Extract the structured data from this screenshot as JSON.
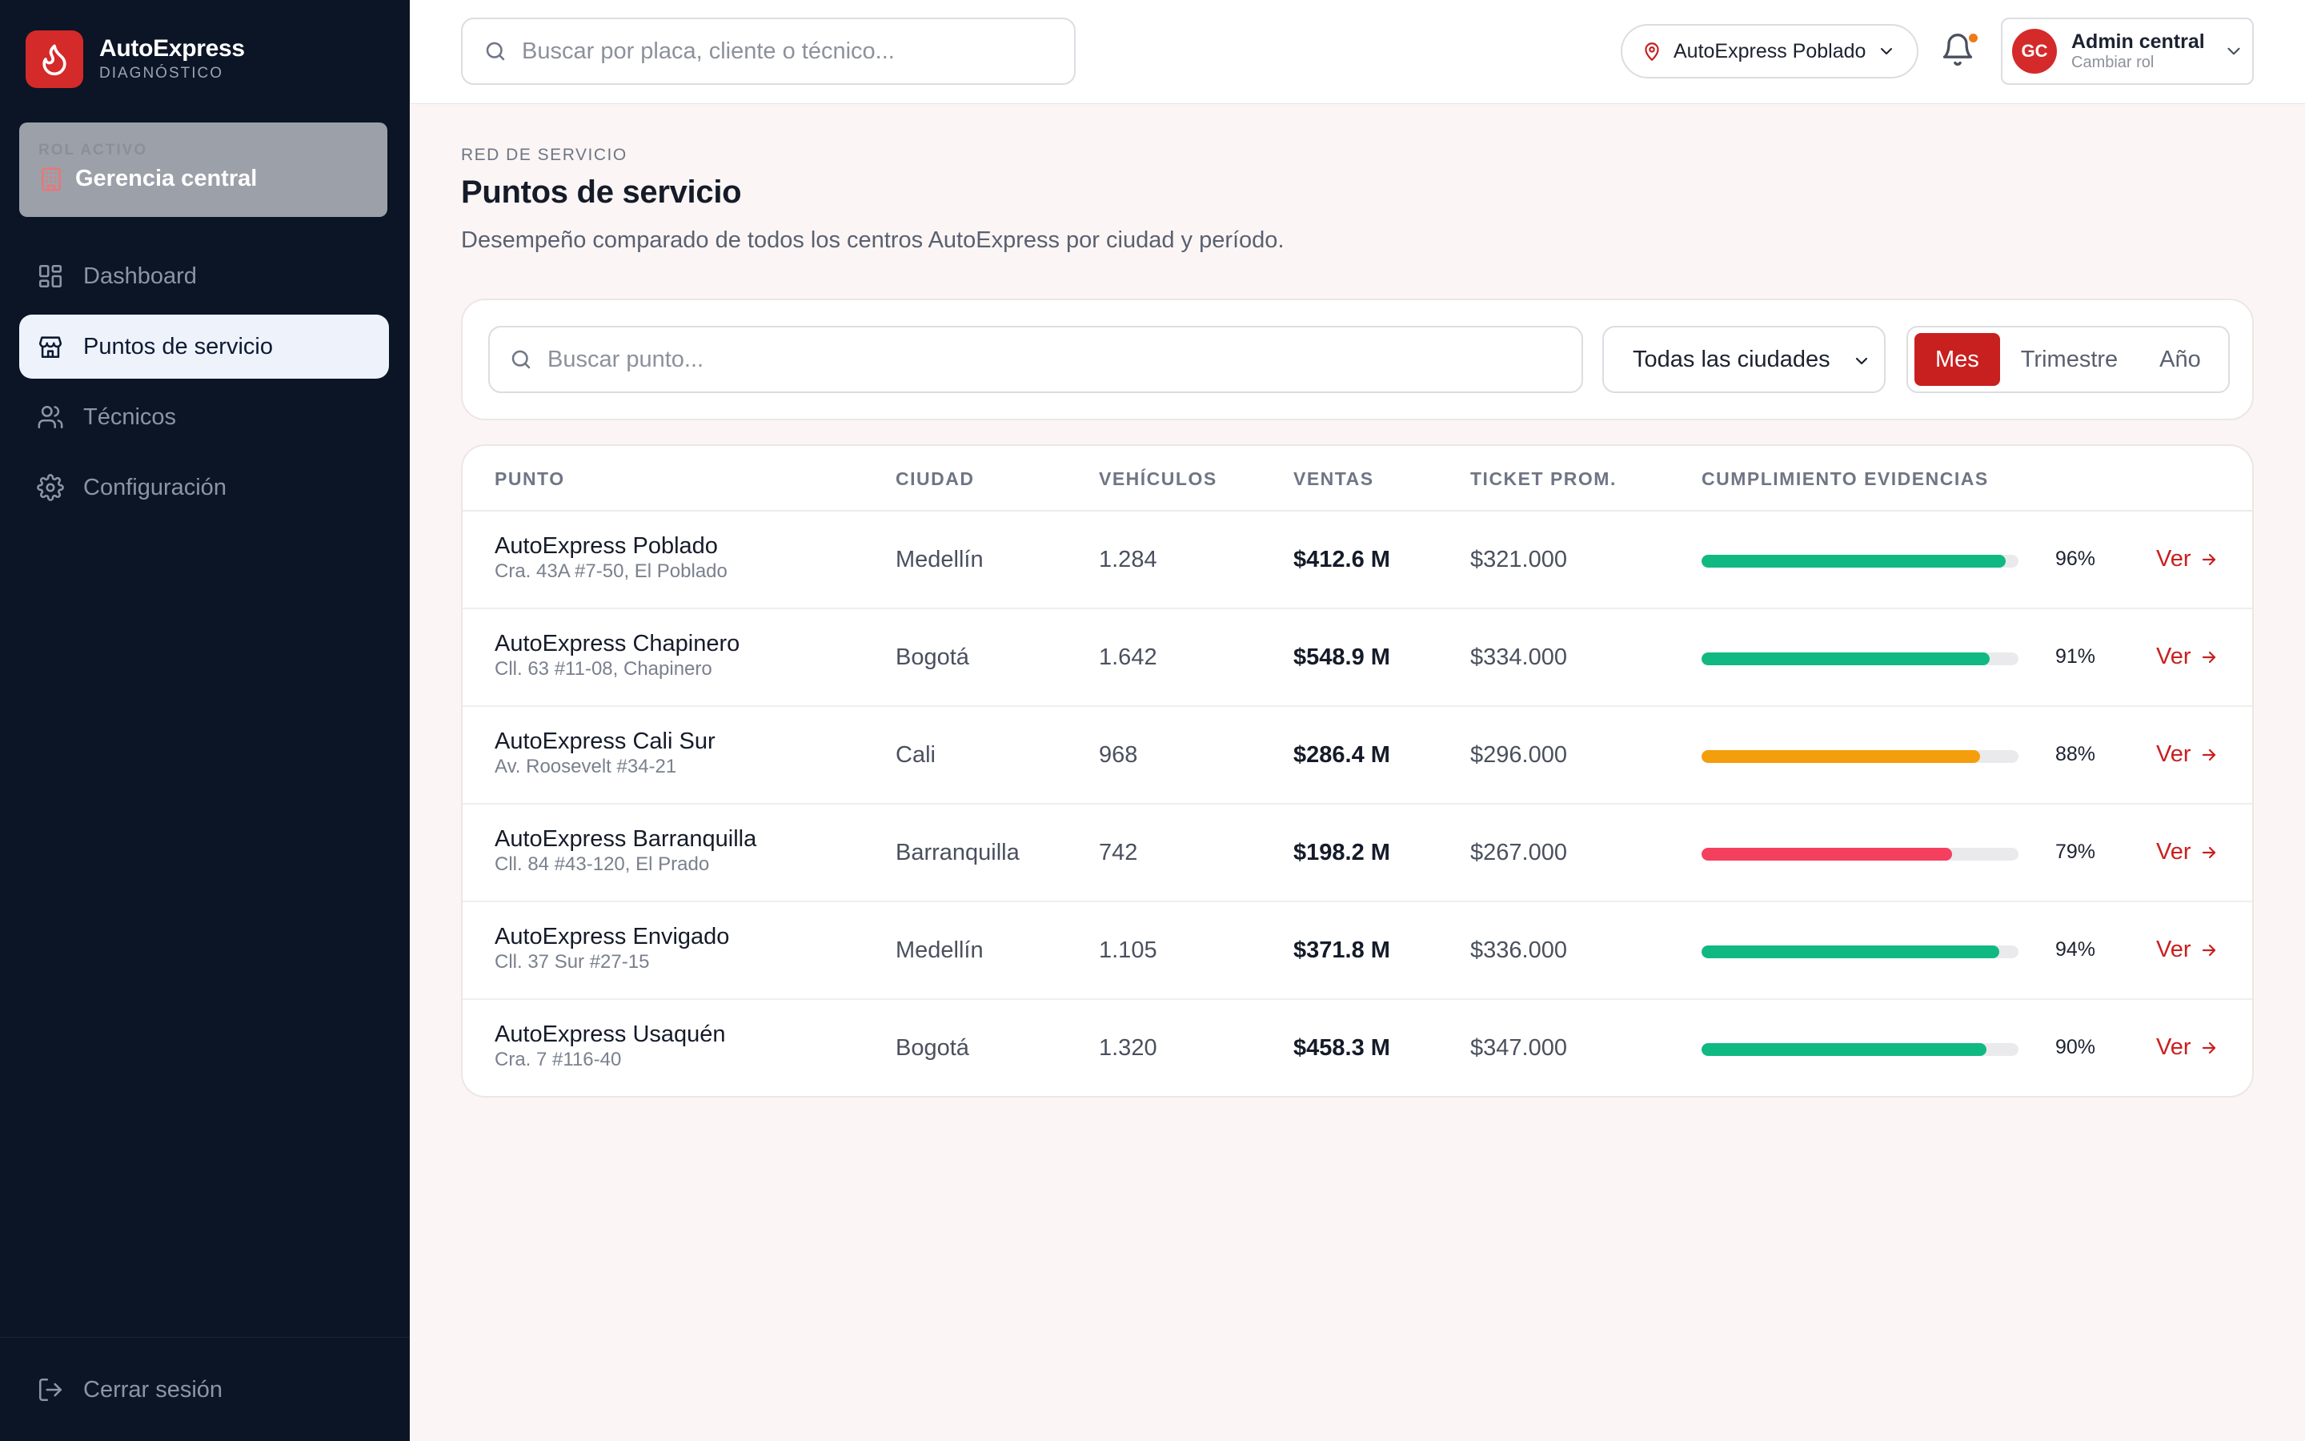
{
  "brand": {
    "name": "AutoExpress",
    "subtitle": "DIAGNÓSTICO"
  },
  "sidebar": {
    "role_label": "ROL ACTIVO",
    "role_name": "Gerencia central",
    "items": [
      {
        "label": "Dashboard",
        "icon": "grid-icon",
        "active": false
      },
      {
        "label": "Puntos de servicio",
        "icon": "store-icon",
        "active": true
      },
      {
        "label": "Técnicos",
        "icon": "users-icon",
        "active": false
      },
      {
        "label": "Configuración",
        "icon": "gear-icon",
        "active": false
      }
    ],
    "logout_label": "Cerrar sesión"
  },
  "topbar": {
    "search_placeholder": "Buscar por placa, cliente o técnico...",
    "location": "AutoExpress Poblado",
    "user": {
      "initials": "GC",
      "name": "Admin central",
      "role_action": "Cambiar rol"
    }
  },
  "page": {
    "eyebrow": "RED DE SERVICIO",
    "title": "Puntos de servicio",
    "description": "Desempeño comparado de todos los centros AutoExpress por ciudad y período."
  },
  "filters": {
    "search_placeholder": "Buscar punto...",
    "city_selected": "Todas las ciudades",
    "periods": [
      "Mes",
      "Trimestre",
      "Año"
    ],
    "active_period": "Mes"
  },
  "table": {
    "headers": {
      "point": "PUNTO",
      "city": "CIUDAD",
      "vehicles": "VEHÍCULOS",
      "sales": "VENTAS",
      "ticket": "TICKET PROM.",
      "compliance": "CUMPLIMIENTO EVIDENCIAS"
    },
    "view_label": "Ver",
    "rows": [
      {
        "name": "AutoExpress Poblado",
        "address": "Cra. 43A #7-50, El Poblado",
        "city": "Medellín",
        "vehicles": "1.284",
        "sales": "$412.6 M",
        "ticket": "$321.000",
        "compliance": 96,
        "compliance_label": "96%",
        "color": "#10b981"
      },
      {
        "name": "AutoExpress Chapinero",
        "address": "Cll. 63 #11-08, Chapinero",
        "city": "Bogotá",
        "vehicles": "1.642",
        "sales": "$548.9 M",
        "ticket": "$334.000",
        "compliance": 91,
        "compliance_label": "91%",
        "color": "#10b981"
      },
      {
        "name": "AutoExpress Cali Sur",
        "address": "Av. Roosevelt #34-21",
        "city": "Cali",
        "vehicles": "968",
        "sales": "$286.4 M",
        "ticket": "$296.000",
        "compliance": 88,
        "compliance_label": "88%",
        "color": "#f59e0b"
      },
      {
        "name": "AutoExpress Barranquilla",
        "address": "Cll. 84 #43-120, El Prado",
        "city": "Barranquilla",
        "vehicles": "742",
        "sales": "$198.2 M",
        "ticket": "$267.000",
        "compliance": 79,
        "compliance_label": "79%",
        "color": "#f43f5e"
      },
      {
        "name": "AutoExpress Envigado",
        "address": "Cll. 37 Sur #27-15",
        "city": "Medellín",
        "vehicles": "1.105",
        "sales": "$371.8 M",
        "ticket": "$336.000",
        "compliance": 94,
        "compliance_label": "94%",
        "color": "#10b981"
      },
      {
        "name": "AutoExpress Usaquén",
        "address": "Cra. 7 #116-40",
        "city": "Bogotá",
        "vehicles": "1.320",
        "sales": "$458.3 M",
        "ticket": "$347.000",
        "compliance": 90,
        "compliance_label": "90%",
        "color": "#10b981"
      }
    ]
  }
}
